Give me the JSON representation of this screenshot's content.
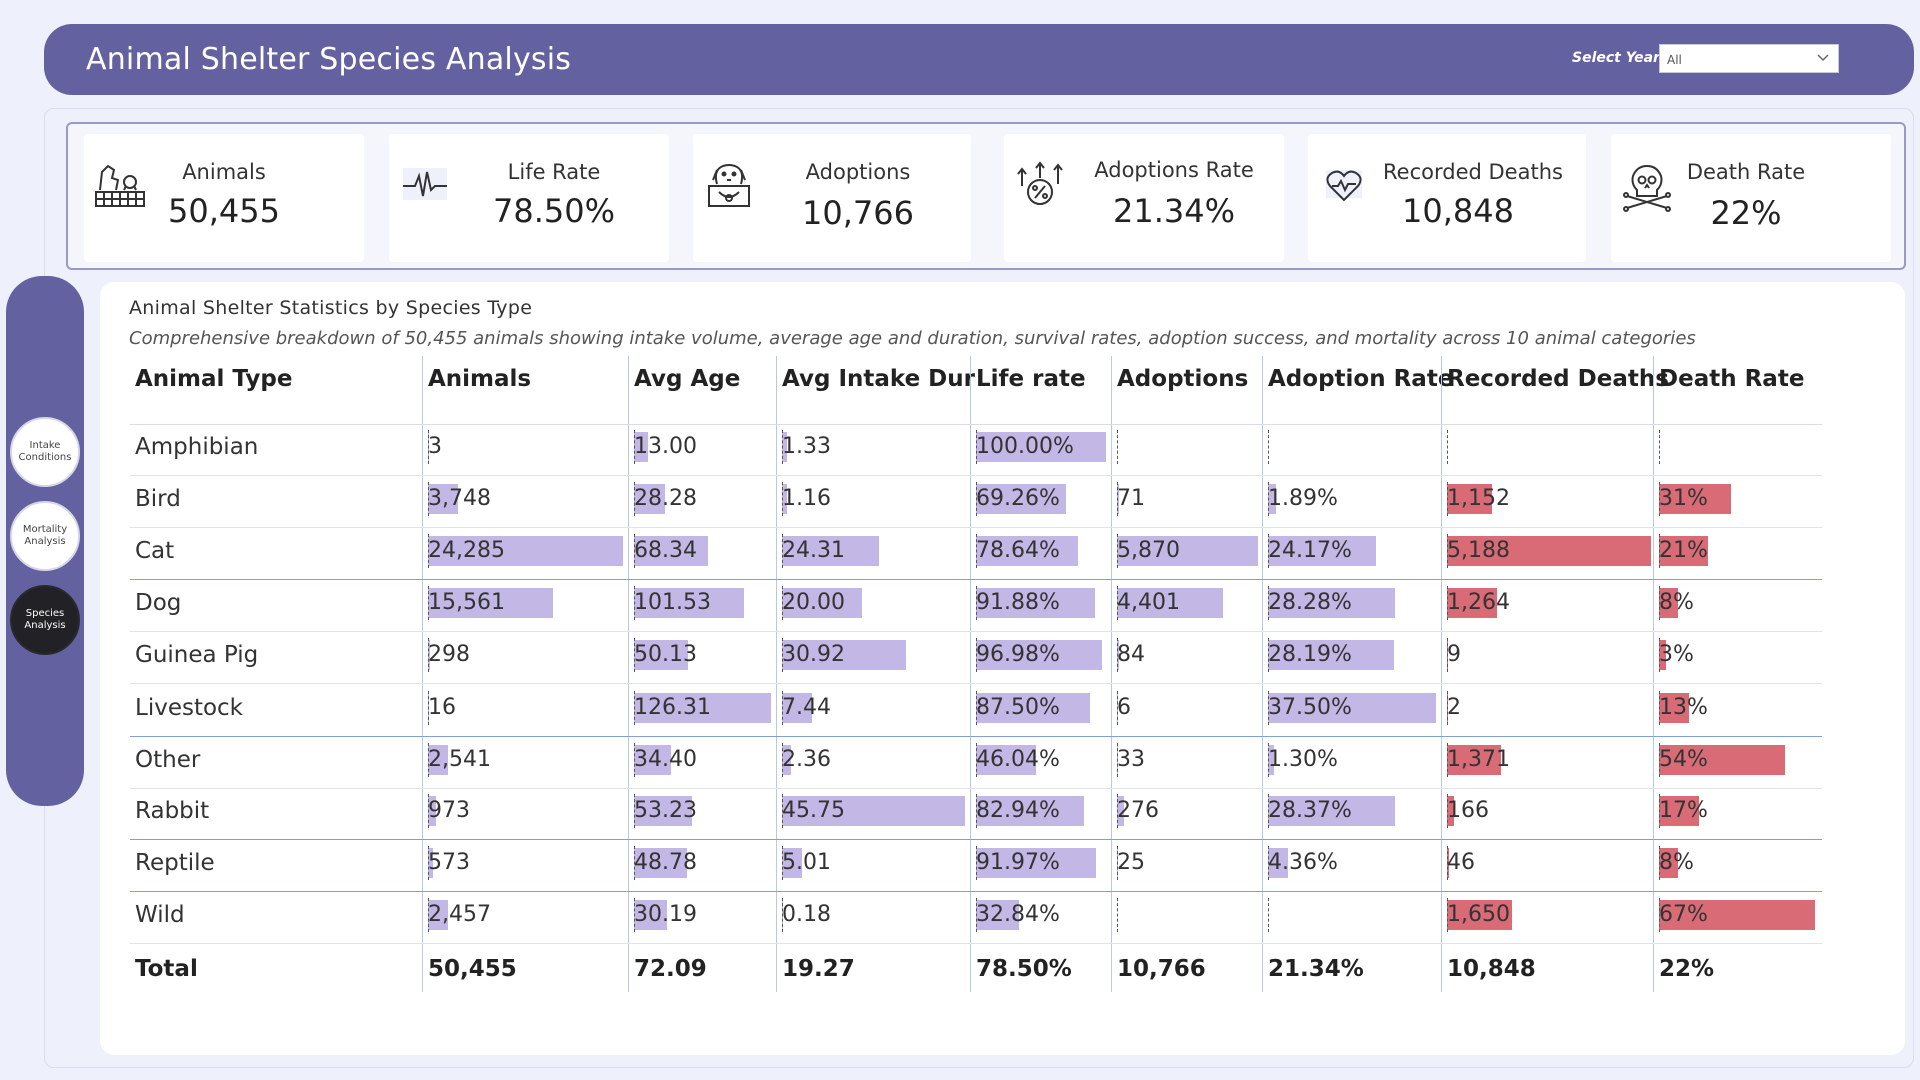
{
  "header": {
    "title": "Animal Shelter Species Analysis",
    "year_label": "Select Year",
    "year_value": "All"
  },
  "kpis": [
    {
      "label": "Animals",
      "value": "50,455",
      "icon": "animals-fence-icon"
    },
    {
      "label": "Life Rate",
      "value": "78.50%",
      "icon": "heartbeat-icon"
    },
    {
      "label": "Adoptions",
      "value": "10,766",
      "icon": "dog-box-icon"
    },
    {
      "label": "Adoptions Rate",
      "value": "21.34%",
      "icon": "growth-percent-icon"
    },
    {
      "label": "Recorded Deaths",
      "value": "10,848",
      "icon": "heart-pulse-icon"
    },
    {
      "label": "Death Rate",
      "value": "22%",
      "icon": "skull-crossbones-icon"
    }
  ],
  "nav": [
    {
      "label": "Intake Conditions",
      "active": false
    },
    {
      "label": "Mortality Analysis",
      "active": false
    },
    {
      "label": "Species Analysis",
      "active": true
    }
  ],
  "table": {
    "title": "Animal Shelter Statistics by Species Type",
    "subtitle": "Comprehensive breakdown of 50,455 animals showing intake volume, average age and duration, survival rates, adoption success, and mortality across 10 animal categories",
    "columns": [
      "Animal Type",
      "Animals",
      "Avg Age",
      "Avg Intake Dur",
      "Life rate",
      "Adoptions",
      "Adoption Rate",
      "Recorded Deaths",
      "Death Rate"
    ],
    "rows": [
      {
        "type": "Amphibian",
        "animals": "3",
        "avg_age": "13.00",
        "intake_dur": "1.33",
        "life_rate": "100.00%",
        "adoptions": "",
        "adoption_rate": "",
        "deaths": "",
        "death_rate": ""
      },
      {
        "type": "Bird",
        "animals": "3,748",
        "avg_age": "28.28",
        "intake_dur": "1.16",
        "life_rate": "69.26%",
        "adoptions": "71",
        "adoption_rate": "1.89%",
        "deaths": "1,152",
        "death_rate": "31%"
      },
      {
        "type": "Cat",
        "animals": "24,285",
        "avg_age": "68.34",
        "intake_dur": "24.31",
        "life_rate": "78.64%",
        "adoptions": "5,870",
        "adoption_rate": "24.17%",
        "deaths": "5,188",
        "death_rate": "21%"
      },
      {
        "type": "Dog",
        "animals": "15,561",
        "avg_age": "101.53",
        "intake_dur": "20.00",
        "life_rate": "91.88%",
        "adoptions": "4,401",
        "adoption_rate": "28.28%",
        "deaths": "1,264",
        "death_rate": "8%"
      },
      {
        "type": "Guinea Pig",
        "animals": "298",
        "avg_age": "50.13",
        "intake_dur": "30.92",
        "life_rate": "96.98%",
        "adoptions": "84",
        "adoption_rate": "28.19%",
        "deaths": "9",
        "death_rate": "3%"
      },
      {
        "type": "Livestock",
        "animals": "16",
        "avg_age": "126.31",
        "intake_dur": "7.44",
        "life_rate": "87.50%",
        "adoptions": "6",
        "adoption_rate": "37.50%",
        "deaths": "2",
        "death_rate": "13%"
      },
      {
        "type": "Other",
        "animals": "2,541",
        "avg_age": "34.40",
        "intake_dur": "2.36",
        "life_rate": "46.04%",
        "adoptions": "33",
        "adoption_rate": "1.30%",
        "deaths": "1,371",
        "death_rate": "54%"
      },
      {
        "type": "Rabbit",
        "animals": "973",
        "avg_age": "53.23",
        "intake_dur": "45.75",
        "life_rate": "82.94%",
        "adoptions": "276",
        "adoption_rate": "28.37%",
        "deaths": "166",
        "death_rate": "17%"
      },
      {
        "type": "Reptile",
        "animals": "573",
        "avg_age": "48.78",
        "intake_dur": "5.01",
        "life_rate": "91.97%",
        "adoptions": "25",
        "adoption_rate": "4.36%",
        "deaths": "46",
        "death_rate": "8%"
      },
      {
        "type": "Wild",
        "animals": "2,457",
        "avg_age": "30.19",
        "intake_dur": "0.18",
        "life_rate": "32.84%",
        "adoptions": "",
        "adoption_rate": "",
        "deaths": "1,650",
        "death_rate": "67%"
      }
    ],
    "total": {
      "type": "Total",
      "animals": "50,455",
      "avg_age": "72.09",
      "intake_dur": "19.27",
      "life_rate": "78.50%",
      "adoptions": "10,766",
      "adoption_rate": "21.34%",
      "deaths": "10,848",
      "death_rate": "22%"
    }
  },
  "colors": {
    "header": "#6461a1",
    "bar_purple": "#c3b7e6",
    "bar_red": "#d96b76"
  }
}
